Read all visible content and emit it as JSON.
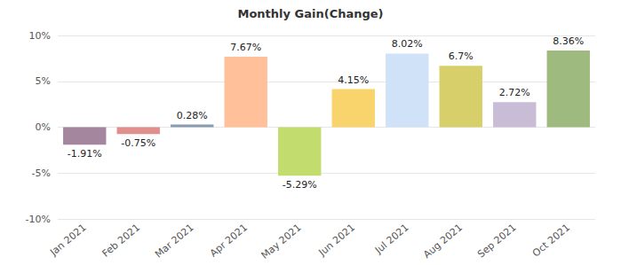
{
  "chart_data": {
    "type": "bar",
    "title": "Monthly Gain(Change)",
    "categories": [
      "Jan 2021",
      "Feb 2021",
      "Mar 2021",
      "Apr 2021",
      "May 2021",
      "Jun 2021",
      "Jul 2021",
      "Aug 2021",
      "Sep 2021",
      "Oct 2021"
    ],
    "values": [
      -1.91,
      -0.75,
      0.28,
      7.67,
      -5.29,
      4.15,
      8.02,
      6.7,
      2.72,
      8.36
    ],
    "value_labels": [
      "-1.91%",
      "-0.75%",
      "0.28%",
      "7.67%",
      "-5.29%",
      "4.15%",
      "8.02%",
      "6.7%",
      "2.72%",
      "8.36%"
    ],
    "colors": [
      "#a5869f",
      "#e08f8c",
      "#8a9cb0",
      "#ffc09a",
      "#c2dc6e",
      "#f9d46c",
      "#cfe2f7",
      "#d6cf6a",
      "#c8bcd6",
      "#9fba7f"
    ],
    "ylim": [
      -10,
      10
    ],
    "yticks": [
      {
        "value": -10,
        "label": "-10%"
      },
      {
        "value": -5,
        "label": "-5%"
      },
      {
        "value": 0,
        "label": "0%"
      },
      {
        "value": 5,
        "label": "5%"
      },
      {
        "value": 10,
        "label": "10%"
      }
    ],
    "grid": true,
    "data_labels": true
  }
}
